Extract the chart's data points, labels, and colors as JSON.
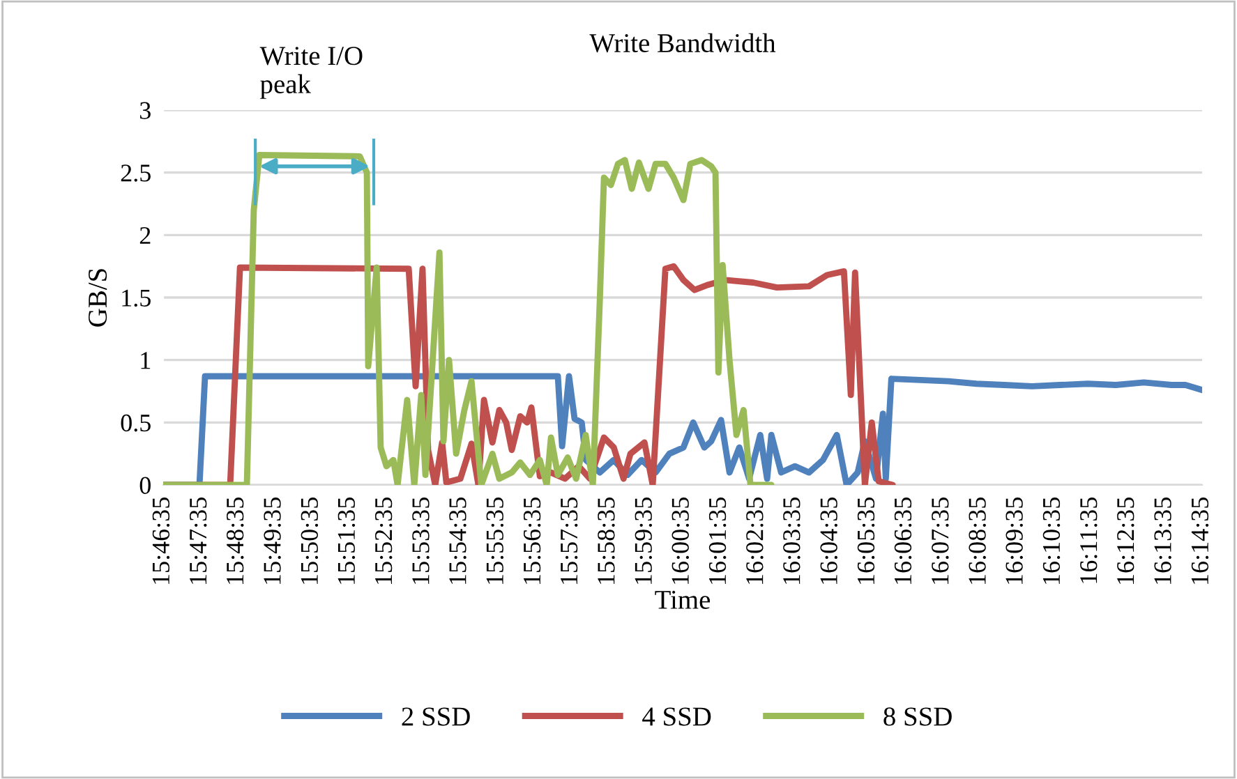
{
  "chart_data": {
    "type": "line",
    "title": "Write Bandwidth",
    "xlabel": "Time",
    "ylabel": "GB/S",
    "xlim": [
      15.7764,
      16.2431
    ],
    "ylim": [
      0,
      3
    ],
    "yticks": [
      0,
      0.5,
      1,
      1.5,
      2,
      2.5,
      3
    ],
    "xticks": [
      {
        "value": 15.7764,
        "label": "15:46:35"
      },
      {
        "value": 15.7931,
        "label": "15:47:35"
      },
      {
        "value": 15.8097,
        "label": "15:48:35"
      },
      {
        "value": 15.8264,
        "label": "15:49:35"
      },
      {
        "value": 15.8431,
        "label": "15:50:35"
      },
      {
        "value": 15.8597,
        "label": "15:51:35"
      },
      {
        "value": 15.8764,
        "label": "15:52:35"
      },
      {
        "value": 15.8931,
        "label": "15:53:35"
      },
      {
        "value": 15.9097,
        "label": "15:54:35"
      },
      {
        "value": 15.9264,
        "label": "15:55:35"
      },
      {
        "value": 15.9431,
        "label": "15:56:35"
      },
      {
        "value": 15.9597,
        "label": "15:57:35"
      },
      {
        "value": 15.9764,
        "label": "15:58:35"
      },
      {
        "value": 15.9931,
        "label": "15:59:35"
      },
      {
        "value": 16.0097,
        "label": "16:00:35"
      },
      {
        "value": 16.0264,
        "label": "16:01:35"
      },
      {
        "value": 16.0431,
        "label": "16:02:35"
      },
      {
        "value": 16.0597,
        "label": "16:03:35"
      },
      {
        "value": 16.0764,
        "label": "16:04:35"
      },
      {
        "value": 16.0931,
        "label": "16:05:35"
      },
      {
        "value": 16.1097,
        "label": "16:06:35"
      },
      {
        "value": 16.1264,
        "label": "16:07:35"
      },
      {
        "value": 16.1431,
        "label": "16:08:35"
      },
      {
        "value": 16.1597,
        "label": "16:09:35"
      },
      {
        "value": 16.1764,
        "label": "16:10:35"
      },
      {
        "value": 16.1931,
        "label": "16:11:35"
      },
      {
        "value": 16.2097,
        "label": "16:12:35"
      },
      {
        "value": 16.2264,
        "label": "16:13:35"
      },
      {
        "value": 16.2431,
        "label": "16:14:35"
      }
    ],
    "grid": "y",
    "legend": "bottom",
    "marker": "none",
    "line_style": "solid",
    "annotations": [
      {
        "text": "Write I/O\npeak",
        "x": 15.8178,
        "y": 2.55
      }
    ],
    "ref_lines": [
      {
        "axis": "x",
        "value": 15.8178,
        "label": null,
        "color": "#4bacc6"
      },
      {
        "axis": "x",
        "value": 15.871,
        "label": null,
        "color": "#4bacc6"
      }
    ],
    "series": [
      {
        "name": "2 SSD",
        "color": "#4f81bd",
        "x": [
          15.7764,
          15.7927,
          15.7952,
          15.9537,
          15.9556,
          15.9587,
          15.9612,
          15.9644,
          15.9663,
          15.9725,
          15.9788,
          15.985,
          15.9913,
          15.9976,
          16.0038,
          16.0101,
          16.0145,
          16.0195,
          16.0226,
          16.027,
          16.0308,
          16.0352,
          16.0396,
          16.0446,
          16.0477,
          16.0496,
          16.054,
          16.0602,
          16.0665,
          16.0728,
          16.079,
          16.0834,
          16.0884,
          16.0916,
          16.0966,
          16.0997,
          16.101,
          16.1035,
          16.1166,
          16.1291,
          16.1417,
          16.1542,
          16.1667,
          16.1792,
          16.1918,
          16.2043,
          16.2169,
          16.2294,
          16.2356,
          16.2431
        ],
        "values": [
          0,
          0,
          0.87,
          0.87,
          0.31,
          0.87,
          0.53,
          0.5,
          0.2,
          0.1,
          0.2,
          0.08,
          0.2,
          0.1,
          0.25,
          0.3,
          0.5,
          0.3,
          0.35,
          0.52,
          0.1,
          0.3,
          0.05,
          0.4,
          0.05,
          0.4,
          0.1,
          0.15,
          0.1,
          0.2,
          0.4,
          0,
          0.1,
          0.35,
          0.05,
          0.57,
          0.05,
          0.85,
          0.84,
          0.83,
          0.81,
          0.8,
          0.79,
          0.8,
          0.81,
          0.8,
          0.82,
          0.8,
          0.8,
          0.76
        ]
      },
      {
        "name": "4 SSD",
        "color": "#c0504d",
        "x": [
          15.7764,
          15.8065,
          15.8109,
          15.8867,
          15.8898,
          15.8929,
          15.8954,
          15.8986,
          15.9017,
          15.9036,
          15.9099,
          15.9149,
          15.918,
          15.9205,
          15.9243,
          15.9274,
          15.9305,
          15.933,
          15.9368,
          15.9399,
          15.9418,
          15.9456,
          15.9506,
          15.9569,
          15.9631,
          15.9681,
          15.9744,
          15.9788,
          15.9832,
          15.9863,
          15.9926,
          15.9963,
          16.002,
          16.0057,
          16.0101,
          16.0151,
          16.0208,
          16.0289,
          16.0414,
          16.0521,
          16.0665,
          16.0746,
          16.0822,
          16.0853,
          16.0872,
          16.0916,
          16.0947,
          16.0978,
          16.1041
        ],
        "values": [
          0,
          0,
          1.74,
          1.73,
          0.79,
          1.73,
          0.28,
          0,
          0.34,
          0.02,
          0.05,
          0.33,
          0,
          0.68,
          0.34,
          0.6,
          0.5,
          0.28,
          0.55,
          0.5,
          0.62,
          0.07,
          0.1,
          0.05,
          0.15,
          0.05,
          0.38,
          0.3,
          0.05,
          0.25,
          0.34,
          0,
          1.73,
          1.75,
          1.64,
          1.56,
          1.6,
          1.64,
          1.62,
          1.58,
          1.59,
          1.68,
          1.71,
          0.72,
          1.7,
          0,
          0.5,
          0.03,
          0
        ]
      },
      {
        "name": "8 SSD",
        "color": "#9bbb59",
        "x": [
          15.7764,
          15.814,
          15.8171,
          15.8196,
          15.8647,
          15.8679,
          15.8685,
          15.8723,
          15.8741,
          15.8767,
          15.8798,
          15.8817,
          15.886,
          15.8892,
          15.8923,
          15.8942,
          15.9005,
          15.9023,
          15.9048,
          15.908,
          15.9117,
          15.9149,
          15.9193,
          15.9243,
          15.9274,
          15.933,
          15.9368,
          15.9412,
          15.9456,
          15.9487,
          15.9506,
          15.9537,
          15.9581,
          15.9619,
          15.9662,
          15.9694,
          15.9725,
          15.9744,
          15.9775,
          15.9807,
          15.9838,
          15.9869,
          15.9901,
          15.9944,
          15.9976,
          16.002,
          16.0057,
          16.0101,
          16.0132,
          16.0183,
          16.0226,
          16.0245,
          16.0258,
          16.0277,
          16.0308,
          16.0339,
          16.0371,
          16.0402,
          16.0496
        ],
        "values": [
          0,
          0,
          2.2,
          2.64,
          2.63,
          2.5,
          0.95,
          1.74,
          0.3,
          0.15,
          0.2,
          0,
          0.68,
          0,
          0.72,
          0.08,
          1.86,
          0.35,
          1.0,
          0.25,
          0.6,
          0.83,
          0,
          0.25,
          0.05,
          0.1,
          0.18,
          0.08,
          0.2,
          0,
          0.38,
          0.08,
          0.22,
          0.05,
          0.4,
          0,
          1.46,
          2.46,
          2.4,
          2.57,
          2.6,
          2.37,
          2.58,
          2.37,
          2.57,
          2.57,
          2.46,
          2.28,
          2.57,
          2.6,
          2.55,
          2.5,
          0.9,
          1.76,
          1.0,
          0.4,
          0.6,
          0,
          0
        ]
      }
    ]
  }
}
